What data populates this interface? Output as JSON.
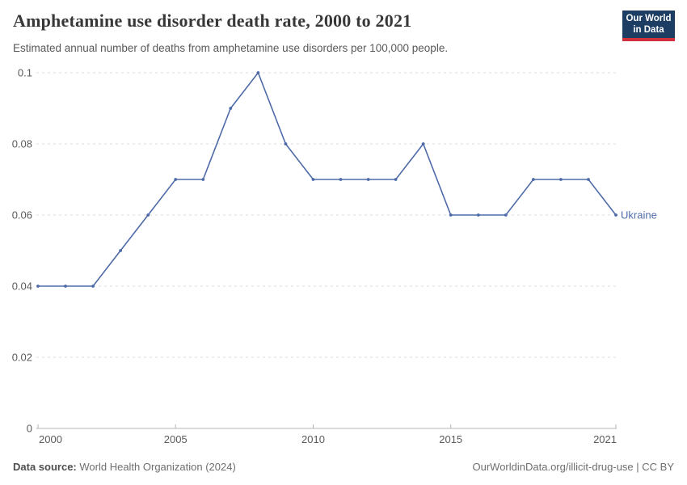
{
  "header": {
    "title": "Amphetamine use disorder death rate, 2000 to 2021",
    "subtitle": "Estimated annual number of deaths from amphetamine use disorders per 100,000 people."
  },
  "logo": {
    "line1": "Our World",
    "line2": "in Data",
    "bg_color": "#1d3d63",
    "accent_color": "#cf303b"
  },
  "chart_data": {
    "type": "line",
    "title": "Amphetamine use disorder death rate, 2000 to 2021",
    "xlabel": "",
    "ylabel": "",
    "xlim": [
      2000,
      2021
    ],
    "ylim": [
      0,
      0.1
    ],
    "grid": "horizontal-dashed",
    "legend_position": "end-of-line-label",
    "x": [
      2000,
      2001,
      2002,
      2003,
      2004,
      2005,
      2006,
      2007,
      2008,
      2009,
      2010,
      2011,
      2012,
      2013,
      2014,
      2015,
      2016,
      2017,
      2018,
      2019,
      2020,
      2021
    ],
    "series": [
      {
        "name": "Ukraine",
        "color": "#4e6ba8",
        "values": [
          0.04,
          0.04,
          0.04,
          0.05,
          0.06,
          0.07,
          0.07,
          0.09,
          0.1,
          0.08,
          0.07,
          0.07,
          0.07,
          0.07,
          0.08,
          0.06,
          0.06,
          0.06,
          0.07,
          0.07,
          0.07,
          0.06
        ]
      }
    ],
    "yticks": [
      {
        "value": 0,
        "label": "0"
      },
      {
        "value": 0.02,
        "label": "0.02"
      },
      {
        "value": 0.04,
        "label": "0.04"
      },
      {
        "value": 0.06,
        "label": "0.06"
      },
      {
        "value": 0.08,
        "label": "0.08"
      },
      {
        "value": 0.1,
        "label": "0.1"
      }
    ],
    "xticks": [
      {
        "value": 2000,
        "label": "2000"
      },
      {
        "value": 2005,
        "label": "2005"
      },
      {
        "value": 2010,
        "label": "2010"
      },
      {
        "value": 2015,
        "label": "2015"
      },
      {
        "value": 2021,
        "label": "2021"
      }
    ],
    "colors": {
      "grid": "#dcdcdc",
      "axis": "#b5b5b5",
      "tick_text": "#5b5b5b"
    }
  },
  "footer": {
    "source_label": "Data source:",
    "source_value": "World Health Organization (2024)",
    "credit": "OurWorldinData.org/illicit-drug-use | CC BY"
  }
}
